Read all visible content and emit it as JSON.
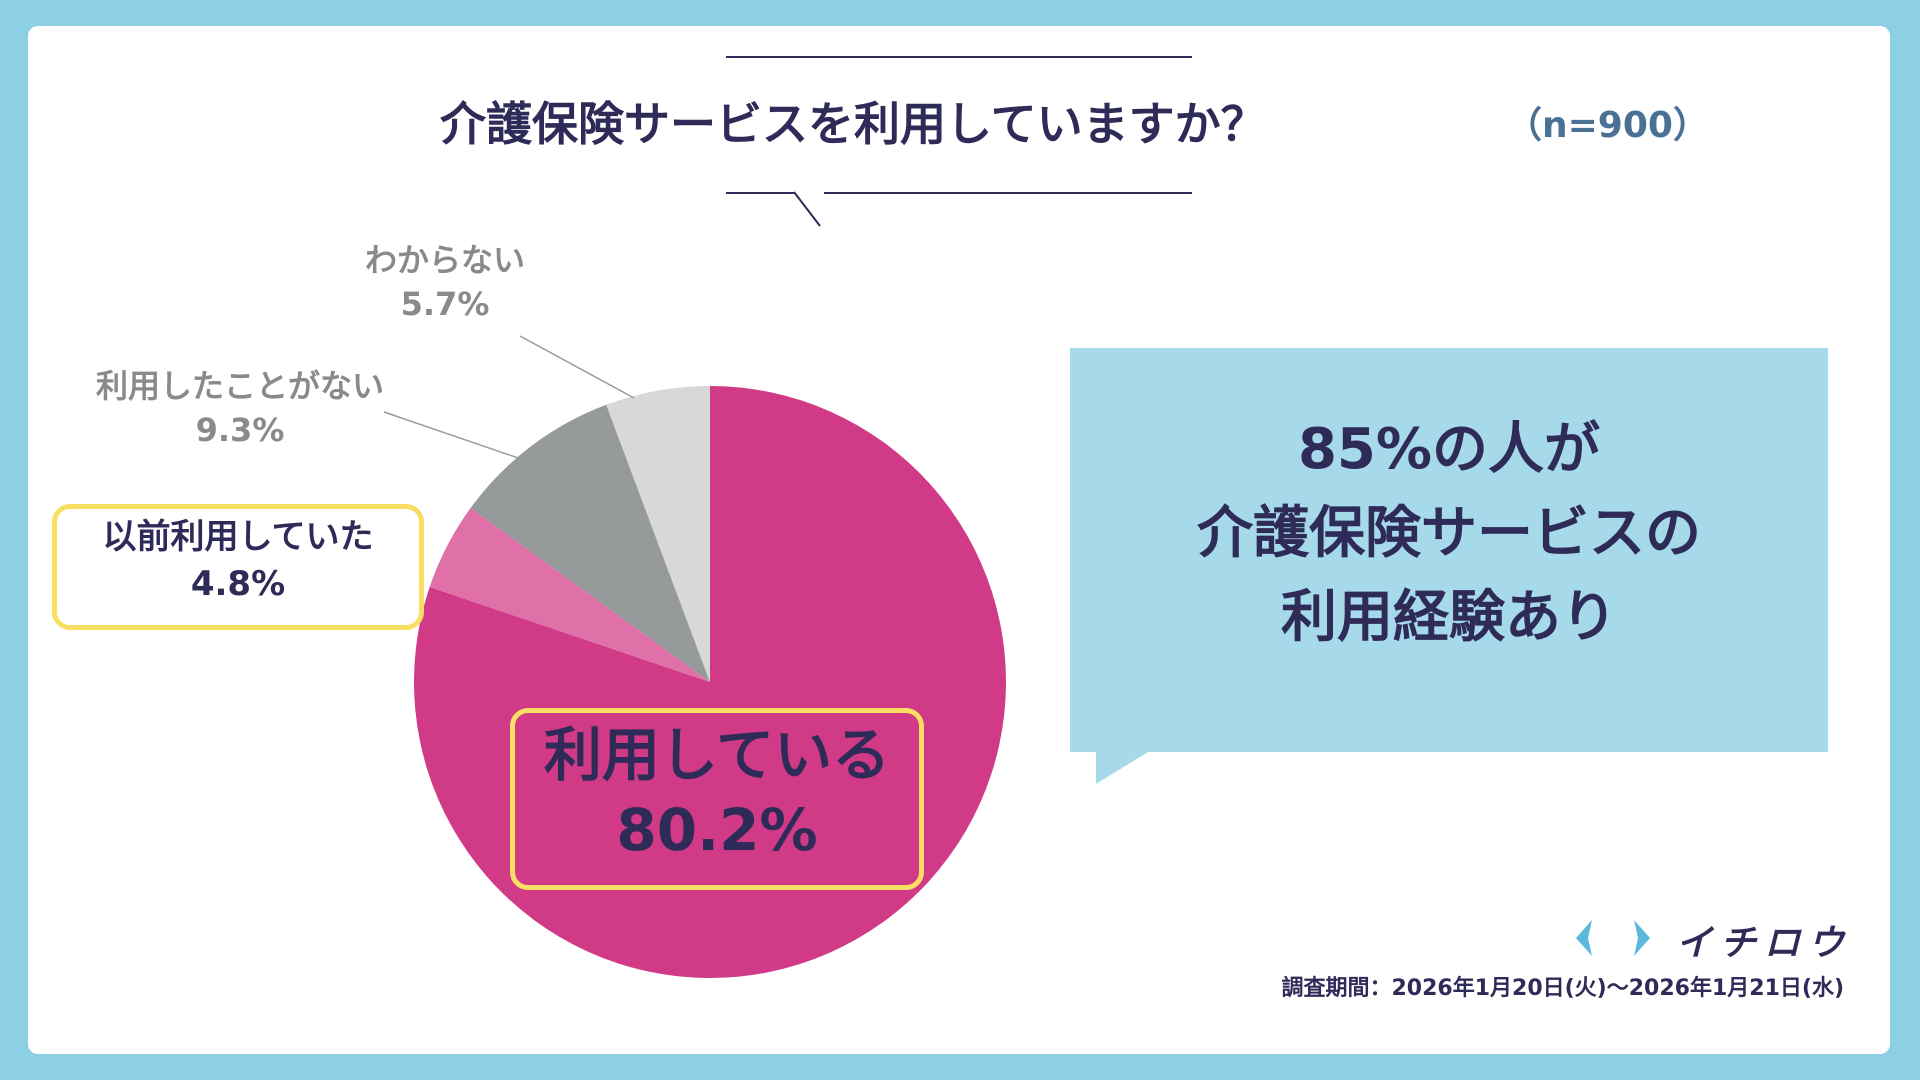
{
  "header": {
    "title": "介護保険サービスを利用していますか？",
    "sample_size": "（n=900）"
  },
  "chart_data": {
    "type": "pie",
    "title": "介護保険サービスを利用していますか？",
    "unit": "%",
    "slices": [
      {
        "label": "利用している",
        "value": 80.2,
        "value_text": "80.2%",
        "color": "#d03a86"
      },
      {
        "label": "以前利用していた",
        "value": 4.8,
        "value_text": "4.8%",
        "color": "#e070a8"
      },
      {
        "label": "利用したことがない",
        "value": 9.3,
        "value_text": "9.3%",
        "color": "#969a9b"
      },
      {
        "label": "わからない",
        "value": 5.7,
        "value_text": "5.7%",
        "color": "#d8d8d8"
      }
    ],
    "highlighted_slices": [
      "利用している",
      "以前利用していた"
    ],
    "highlight_color": "#f8df63"
  },
  "callout": {
    "lines": [
      "85%の人が",
      "介護保険サービスの",
      "利用経験あり"
    ],
    "background": "#a6daea"
  },
  "footer": {
    "brand": "イチロウ",
    "survey_period": "調査期間：2026年1月20日(火)〜2026年1月21日(水)"
  },
  "colors": {
    "page_background": "#8dd0e6",
    "text_navy": "#2f2b58",
    "accent_blue": "#4a7194",
    "logo_blue": "#5bb8dc"
  }
}
